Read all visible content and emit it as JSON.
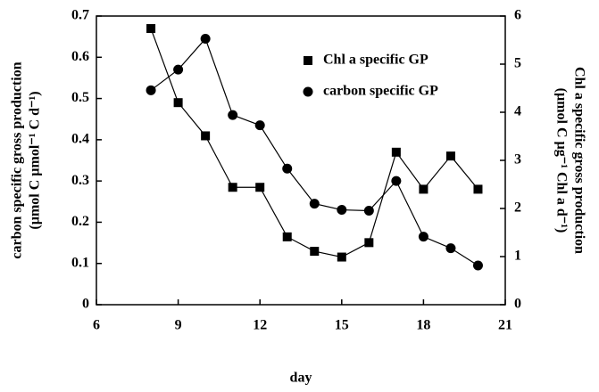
{
  "chart_data": {
    "type": "line",
    "x_label": "day",
    "y_label": [
      "carbon specific gross production",
      "(µmol C µmol⁻¹ C d⁻¹)"
    ],
    "y2_label": [
      "Chl a specific gross production",
      "(µmol C µg⁻¹ Chl a d⁻¹)"
    ],
    "xlim": [
      6,
      21
    ],
    "xticks": [
      6,
      9,
      12,
      15,
      18,
      21
    ],
    "ylim": [
      0,
      0.7
    ],
    "yticks": [
      0,
      0.1,
      0.2,
      0.3,
      0.4,
      0.5,
      0.6,
      0.7
    ],
    "y2lim": [
      0,
      6
    ],
    "y2ticks": [
      0,
      1,
      2,
      3,
      4,
      5,
      6
    ],
    "legend": "upper center",
    "series": [
      {
        "name": "Chl a specific GP",
        "color": "#000000",
        "marker": "square",
        "axis": "y2",
        "x": [
          8,
          9,
          10,
          11,
          12,
          13,
          14,
          15,
          16,
          17,
          18,
          19,
          20
        ],
        "values": [
          5.74,
          4.2,
          3.51,
          2.44,
          2.44,
          1.41,
          1.11,
          0.99,
          1.29,
          3.17,
          2.4,
          3.09,
          2.4
        ]
      },
      {
        "name": "carbon specific GP",
        "color": "#000000",
        "marker": "circle",
        "x": [
          8,
          9,
          10,
          11,
          12,
          13,
          14,
          15,
          16,
          17,
          18,
          19,
          20
        ],
        "values": [
          0.52,
          0.57,
          0.645,
          0.46,
          0.435,
          0.33,
          0.245,
          0.23,
          0.228,
          0.3,
          0.165,
          0.137,
          0.095
        ]
      }
    ]
  }
}
